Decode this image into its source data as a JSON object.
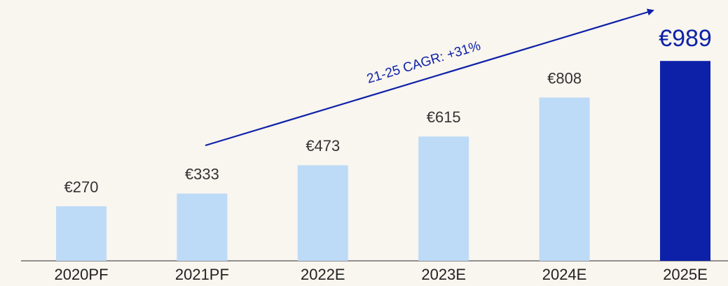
{
  "chart_data": {
    "type": "bar",
    "categories": [
      "2020PF",
      "2021PF",
      "2022E",
      "2023E",
      "2024E",
      "2025E"
    ],
    "values": [
      270,
      333,
      473,
      615,
      808,
      989
    ],
    "value_labels": [
      "€270",
      "€333",
      "€473",
      "€615",
      "€808",
      "€989"
    ],
    "colors": [
      "#bddbf7",
      "#bddbf7",
      "#bddbf7",
      "#bddbf7",
      "#bddbf7",
      "#0d21a8"
    ],
    "label_colors": [
      "#333333",
      "#333333",
      "#333333",
      "#333333",
      "#333333",
      "#0d21a8"
    ],
    "ylim": [
      0,
      1000
    ],
    "annotation": "21-25 CAGR:  +31%",
    "annotation_color": "#0d21a8"
  }
}
